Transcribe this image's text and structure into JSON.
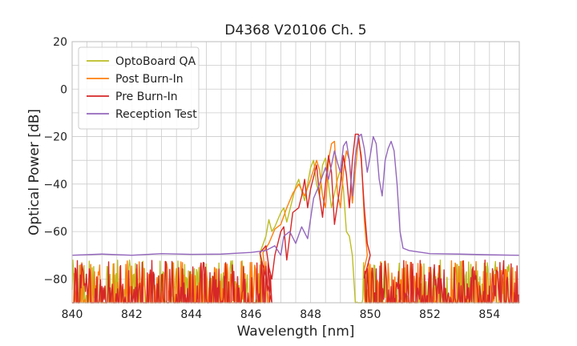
{
  "chart_data": {
    "type": "line",
    "title": "D4368 V20106 Ch. 5",
    "xlabel": "Wavelength [nm]",
    "ylabel": "Optical Power [dB]",
    "xlim": [
      840,
      855
    ],
    "ylim": [
      -90,
      20
    ],
    "xticks": [
      840,
      842,
      844,
      846,
      848,
      850,
      852,
      854
    ],
    "xticks_minor": [
      840.5,
      841,
      841.5,
      842.5,
      843,
      843.5,
      844.5,
      845,
      845.5,
      846.5,
      847,
      847.5,
      848.5,
      849,
      849.5,
      850.5,
      851,
      851.5,
      852.5,
      853,
      853.5,
      854.5
    ],
    "yticks": [
      20,
      0,
      -20,
      -40,
      -60,
      -80
    ],
    "yticks_minor": [
      10,
      -10,
      -30,
      -50,
      -70
    ],
    "grid": true,
    "legend_position": "upper-left",
    "noise_floor": [
      -90,
      -72
    ],
    "series": [
      {
        "name": "OptoBoard QA",
        "color": "#bcbd22",
        "noise_range": [
          [
            840,
            846.4
          ],
          [
            849.5,
            855
          ]
        ],
        "points": [
          [
            846.3,
            -69
          ],
          [
            846.5,
            -62
          ],
          [
            846.6,
            -55
          ],
          [
            846.7,
            -60
          ],
          [
            846.8,
            -58
          ],
          [
            847.0,
            -52
          ],
          [
            847.1,
            -50
          ],
          [
            847.2,
            -56
          ],
          [
            847.4,
            -46
          ],
          [
            847.5,
            -41
          ],
          [
            847.6,
            -38
          ],
          [
            847.7,
            -43
          ],
          [
            847.8,
            -47
          ],
          [
            847.9,
            -40
          ],
          [
            848.0,
            -33
          ],
          [
            848.1,
            -30
          ],
          [
            848.2,
            -40
          ],
          [
            848.3,
            -45
          ],
          [
            848.4,
            -32
          ],
          [
            848.5,
            -29
          ],
          [
            848.6,
            -40
          ],
          [
            848.7,
            -50
          ],
          [
            848.8,
            -44
          ],
          [
            848.9,
            -38
          ],
          [
            849.0,
            -34
          ],
          [
            849.1,
            -42
          ],
          [
            849.2,
            -60
          ],
          [
            849.3,
            -62
          ],
          [
            849.4,
            -70
          ]
        ]
      },
      {
        "name": "Post Burn-In",
        "color": "#ff7f0e",
        "noise_range": [
          [
            840,
            846.6
          ],
          [
            849.8,
            855
          ]
        ],
        "points": [
          [
            846.4,
            -69
          ],
          [
            846.6,
            -65
          ],
          [
            846.8,
            -59
          ],
          [
            847.0,
            -57
          ],
          [
            847.2,
            -50
          ],
          [
            847.4,
            -44
          ],
          [
            847.6,
            -40
          ],
          [
            847.8,
            -45
          ],
          [
            848.0,
            -38
          ],
          [
            848.2,
            -30
          ],
          [
            848.3,
            -34
          ],
          [
            848.4,
            -45
          ],
          [
            848.5,
            -50
          ],
          [
            848.6,
            -30
          ],
          [
            848.7,
            -23
          ],
          [
            848.8,
            -22
          ],
          [
            848.9,
            -44
          ],
          [
            849.0,
            -50
          ],
          [
            849.1,
            -35
          ],
          [
            849.2,
            -26
          ],
          [
            849.3,
            -30
          ],
          [
            849.4,
            -48
          ],
          [
            849.6,
            -21
          ],
          [
            849.7,
            -28
          ],
          [
            849.8,
            -55
          ],
          [
            849.9,
            -70
          ]
        ]
      },
      {
        "name": "Pre Burn-In",
        "color": "#d62728",
        "noise_range": [
          [
            840,
            846.7
          ],
          [
            849.8,
            855
          ]
        ],
        "points": [
          [
            846.3,
            -69
          ],
          [
            846.5,
            -66
          ],
          [
            846.6,
            -75
          ],
          [
            846.7,
            -80
          ],
          [
            846.8,
            -70
          ],
          [
            847.0,
            -60
          ],
          [
            847.1,
            -58
          ],
          [
            847.2,
            -72
          ],
          [
            847.3,
            -62
          ],
          [
            847.4,
            -52
          ],
          [
            847.6,
            -50
          ],
          [
            847.7,
            -45
          ],
          [
            847.8,
            -38
          ],
          [
            847.9,
            -50
          ],
          [
            848.0,
            -42
          ],
          [
            848.2,
            -32
          ],
          [
            848.3,
            -45
          ],
          [
            848.4,
            -54
          ],
          [
            848.5,
            -40
          ],
          [
            848.6,
            -28
          ],
          [
            848.7,
            -35
          ],
          [
            848.8,
            -57
          ],
          [
            849.0,
            -40
          ],
          [
            849.1,
            -28
          ],
          [
            849.2,
            -36
          ],
          [
            849.3,
            -50
          ],
          [
            849.4,
            -30
          ],
          [
            849.5,
            -19
          ],
          [
            849.6,
            -19
          ],
          [
            849.7,
            -30
          ],
          [
            849.8,
            -50
          ],
          [
            849.9,
            -65
          ],
          [
            850.0,
            -70
          ]
        ]
      },
      {
        "name": "Reception Test",
        "color": "#9467bd",
        "noise_range": [],
        "points": [
          [
            840,
            -70
          ],
          [
            841,
            -69.5
          ],
          [
            842,
            -70
          ],
          [
            843,
            -69.3
          ],
          [
            844,
            -69.6
          ],
          [
            845,
            -69.5
          ],
          [
            846,
            -68.8
          ],
          [
            846.5,
            -68
          ],
          [
            846.8,
            -66
          ],
          [
            847.0,
            -70
          ],
          [
            847.1,
            -62
          ],
          [
            847.3,
            -60
          ],
          [
            847.5,
            -65
          ],
          [
            847.7,
            -58
          ],
          [
            847.9,
            -63
          ],
          [
            848.1,
            -46
          ],
          [
            848.3,
            -40
          ],
          [
            848.5,
            -33
          ],
          [
            848.6,
            -38
          ],
          [
            848.8,
            -26
          ],
          [
            848.9,
            -31
          ],
          [
            849.0,
            -35
          ],
          [
            849.1,
            -24
          ],
          [
            849.2,
            -22
          ],
          [
            849.3,
            -30
          ],
          [
            849.4,
            -45
          ],
          [
            849.5,
            -28
          ],
          [
            849.6,
            -20
          ],
          [
            849.7,
            -19
          ],
          [
            849.8,
            -25
          ],
          [
            849.9,
            -35
          ],
          [
            850.0,
            -28
          ],
          [
            850.1,
            -20
          ],
          [
            850.2,
            -23
          ],
          [
            850.3,
            -38
          ],
          [
            850.4,
            -45
          ],
          [
            850.5,
            -30
          ],
          [
            850.6,
            -25
          ],
          [
            850.7,
            -22
          ],
          [
            850.8,
            -26
          ],
          [
            850.9,
            -40
          ],
          [
            851.0,
            -60
          ],
          [
            851.1,
            -67
          ],
          [
            851.3,
            -68
          ],
          [
            852,
            -69.3
          ],
          [
            853,
            -69.5
          ],
          [
            854,
            -69.8
          ],
          [
            855,
            -70
          ]
        ]
      }
    ]
  }
}
